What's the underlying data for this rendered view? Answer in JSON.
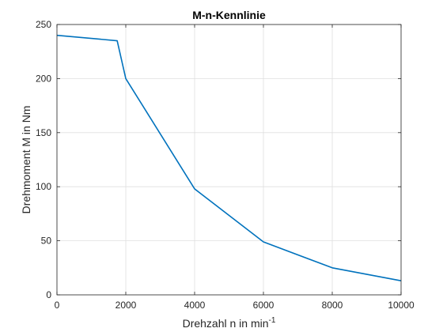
{
  "chart_data": {
    "type": "line",
    "title": "M-n-Kennlinie",
    "xlabel": "Drehzahl n in min",
    "xlabel_superscript": "-1",
    "ylabel": "Drehmoment M in Nm",
    "xlim": [
      0,
      10000
    ],
    "ylim": [
      0,
      250
    ],
    "xticks": [
      0,
      2000,
      4000,
      6000,
      8000,
      10000
    ],
    "yticks": [
      0,
      50,
      100,
      150,
      200,
      250
    ],
    "grid": true,
    "series": [
      {
        "color": "#0072BD",
        "x": [
          0,
          1750,
          2000,
          4000,
          6000,
          8000,
          10000
        ],
        "y": [
          240,
          235,
          200,
          98,
          49,
          25,
          13
        ]
      }
    ]
  }
}
